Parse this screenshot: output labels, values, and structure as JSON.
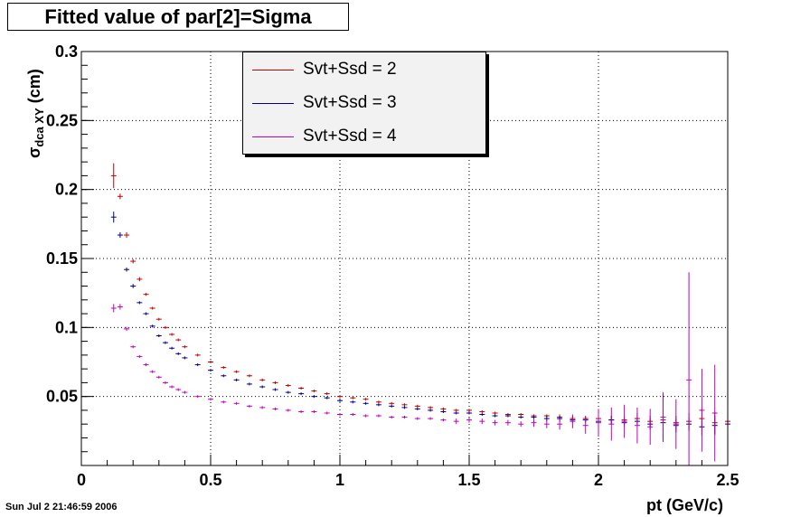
{
  "title": "Fitted value of par[2]=Sigma",
  "timestamp": "Sun Jul  2 21:46:59 2006",
  "chart_data": {
    "type": "scatter",
    "title": "Fitted value of par[2]=Sigma",
    "xlabel": "pt (GeV/c)",
    "ylabel_main": "σ",
    "ylabel_sub": "dca XY",
    "ylabel_unit": " (cm)",
    "xlim": [
      0,
      2.5
    ],
    "ylim": [
      0,
      0.3
    ],
    "x_ticks": [
      "0",
      "0.5",
      "1",
      "1.5",
      "2",
      "2.5"
    ],
    "y_ticks": [
      "0.05",
      "0.1",
      "0.15",
      "0.2",
      "0.25",
      "0.3"
    ],
    "grid": true,
    "legend_position": "top-center",
    "series": [
      {
        "name": "Svt+Ssd = 2",
        "color": "#c00000",
        "points": [
          [
            0.125,
            0.21,
            0.009
          ],
          [
            0.15,
            0.195,
            0.002
          ],
          [
            0.175,
            0.167,
            0.002
          ],
          [
            0.2,
            0.148,
            0.0015
          ],
          [
            0.225,
            0.135,
            0.0015
          ],
          [
            0.25,
            0.124,
            0.001
          ],
          [
            0.275,
            0.114,
            0.001
          ],
          [
            0.3,
            0.106,
            0.001
          ],
          [
            0.325,
            0.1,
            0.001
          ],
          [
            0.35,
            0.095,
            0.001
          ],
          [
            0.375,
            0.091,
            0.001
          ],
          [
            0.4,
            0.086,
            0.001
          ],
          [
            0.45,
            0.08,
            0.001
          ],
          [
            0.5,
            0.075,
            0.001
          ],
          [
            0.55,
            0.071,
            0.001
          ],
          [
            0.6,
            0.068,
            0.001
          ],
          [
            0.65,
            0.065,
            0.001
          ],
          [
            0.7,
            0.062,
            0.001
          ],
          [
            0.75,
            0.06,
            0.001
          ],
          [
            0.8,
            0.058,
            0.001
          ],
          [
            0.85,
            0.056,
            0.001
          ],
          [
            0.9,
            0.054,
            0.001
          ],
          [
            0.95,
            0.052,
            0.001
          ],
          [
            1.0,
            0.05,
            0.001
          ],
          [
            1.05,
            0.049,
            0.001
          ],
          [
            1.1,
            0.048,
            0.001
          ],
          [
            1.15,
            0.046,
            0.001
          ],
          [
            1.2,
            0.045,
            0.001
          ],
          [
            1.25,
            0.044,
            0.001
          ],
          [
            1.3,
            0.043,
            0.001
          ],
          [
            1.35,
            0.042,
            0.001
          ],
          [
            1.4,
            0.041,
            0.001
          ],
          [
            1.45,
            0.04,
            0.001
          ],
          [
            1.5,
            0.04,
            0.001
          ],
          [
            1.55,
            0.039,
            0.001
          ],
          [
            1.6,
            0.038,
            0.001
          ],
          [
            1.65,
            0.037,
            0.001
          ],
          [
            1.7,
            0.037,
            0.001
          ],
          [
            1.75,
            0.036,
            0.001
          ],
          [
            1.8,
            0.036,
            0.001
          ],
          [
            1.85,
            0.035,
            0.002
          ],
          [
            1.9,
            0.034,
            0.002
          ],
          [
            1.95,
            0.034,
            0.002
          ],
          [
            2.0,
            0.034,
            0.002
          ],
          [
            2.05,
            0.033,
            0.003
          ],
          [
            2.1,
            0.033,
            0.003
          ],
          [
            2.15,
            0.034,
            0.004
          ],
          [
            2.2,
            0.032,
            0.004
          ],
          [
            2.25,
            0.033,
            0.005
          ],
          [
            2.3,
            0.031,
            0.005
          ],
          [
            2.35,
            0.032,
            0.006
          ],
          [
            2.4,
            0.034,
            0.007
          ],
          [
            2.45,
            0.031,
            0.008
          ],
          [
            2.5,
            0.032,
            0.009
          ]
        ]
      },
      {
        "name": "Svt+Ssd = 3",
        "color": "#00008b",
        "points": [
          [
            0.125,
            0.18,
            0.004
          ],
          [
            0.15,
            0.167,
            0.002
          ],
          [
            0.175,
            0.142,
            0.0015
          ],
          [
            0.2,
            0.13,
            0.0015
          ],
          [
            0.225,
            0.118,
            0.001
          ],
          [
            0.25,
            0.11,
            0.001
          ],
          [
            0.275,
            0.101,
            0.001
          ],
          [
            0.3,
            0.094,
            0.001
          ],
          [
            0.325,
            0.089,
            0.001
          ],
          [
            0.35,
            0.085,
            0.001
          ],
          [
            0.375,
            0.081,
            0.001
          ],
          [
            0.4,
            0.078,
            0.001
          ],
          [
            0.45,
            0.073,
            0.001
          ],
          [
            0.5,
            0.069,
            0.001
          ],
          [
            0.55,
            0.065,
            0.001
          ],
          [
            0.6,
            0.062,
            0.001
          ],
          [
            0.65,
            0.059,
            0.001
          ],
          [
            0.7,
            0.057,
            0.001
          ],
          [
            0.75,
            0.055,
            0.001
          ],
          [
            0.8,
            0.053,
            0.001
          ],
          [
            0.85,
            0.052,
            0.001
          ],
          [
            0.9,
            0.05,
            0.001
          ],
          [
            0.95,
            0.049,
            0.001
          ],
          [
            1.0,
            0.047,
            0.001
          ],
          [
            1.05,
            0.046,
            0.001
          ],
          [
            1.1,
            0.045,
            0.001
          ],
          [
            1.15,
            0.044,
            0.001
          ],
          [
            1.2,
            0.043,
            0.001
          ],
          [
            1.25,
            0.042,
            0.001
          ],
          [
            1.3,
            0.041,
            0.001
          ],
          [
            1.35,
            0.04,
            0.001
          ],
          [
            1.4,
            0.039,
            0.001
          ],
          [
            1.45,
            0.038,
            0.001
          ],
          [
            1.5,
            0.038,
            0.001
          ],
          [
            1.55,
            0.037,
            0.001
          ],
          [
            1.6,
            0.036,
            0.001
          ],
          [
            1.65,
            0.036,
            0.001
          ],
          [
            1.7,
            0.035,
            0.001
          ],
          [
            1.75,
            0.035,
            0.001
          ],
          [
            1.8,
            0.034,
            0.002
          ],
          [
            1.85,
            0.034,
            0.002
          ],
          [
            1.9,
            0.033,
            0.002
          ],
          [
            1.95,
            0.033,
            0.002
          ],
          [
            2.0,
            0.032,
            0.002
          ],
          [
            2.05,
            0.033,
            0.003
          ],
          [
            2.1,
            0.031,
            0.003
          ],
          [
            2.15,
            0.032,
            0.003
          ],
          [
            2.2,
            0.03,
            0.004
          ],
          [
            2.25,
            0.031,
            0.004
          ],
          [
            2.3,
            0.029,
            0.005
          ],
          [
            2.35,
            0.03,
            0.005
          ],
          [
            2.4,
            0.028,
            0.006
          ],
          [
            2.45,
            0.029,
            0.007
          ],
          [
            2.5,
            0.03,
            0.008
          ]
        ]
      },
      {
        "name": "Svt+Ssd = 4",
        "color": "#c000c0",
        "points": [
          [
            0.125,
            0.114,
            0.003
          ],
          [
            0.15,
            0.115,
            0.002
          ],
          [
            0.175,
            0.099,
            0.0015
          ],
          [
            0.2,
            0.086,
            0.001
          ],
          [
            0.225,
            0.079,
            0.001
          ],
          [
            0.25,
            0.073,
            0.001
          ],
          [
            0.275,
            0.068,
            0.001
          ],
          [
            0.3,
            0.064,
            0.001
          ],
          [
            0.325,
            0.06,
            0.001
          ],
          [
            0.35,
            0.057,
            0.001
          ],
          [
            0.375,
            0.055,
            0.001
          ],
          [
            0.4,
            0.053,
            0.001
          ],
          [
            0.45,
            0.05,
            0.001
          ],
          [
            0.5,
            0.048,
            0.001
          ],
          [
            0.55,
            0.046,
            0.001
          ],
          [
            0.6,
            0.045,
            0.001
          ],
          [
            0.65,
            0.043,
            0.001
          ],
          [
            0.7,
            0.042,
            0.001
          ],
          [
            0.75,
            0.041,
            0.001
          ],
          [
            0.8,
            0.04,
            0.001
          ],
          [
            0.85,
            0.039,
            0.001
          ],
          [
            0.9,
            0.039,
            0.001
          ],
          [
            0.95,
            0.038,
            0.001
          ],
          [
            1.0,
            0.037,
            0.001
          ],
          [
            1.05,
            0.037,
            0.001
          ],
          [
            1.1,
            0.036,
            0.001
          ],
          [
            1.15,
            0.036,
            0.001
          ],
          [
            1.2,
            0.035,
            0.001
          ],
          [
            1.25,
            0.035,
            0.001
          ],
          [
            1.3,
            0.034,
            0.001
          ],
          [
            1.35,
            0.034,
            0.001
          ],
          [
            1.4,
            0.033,
            0.001
          ],
          [
            1.45,
            0.032,
            0.002
          ],
          [
            1.5,
            0.033,
            0.002
          ],
          [
            1.55,
            0.032,
            0.002
          ],
          [
            1.6,
            0.031,
            0.002
          ],
          [
            1.65,
            0.031,
            0.002
          ],
          [
            1.7,
            0.03,
            0.002
          ],
          [
            1.75,
            0.031,
            0.003
          ],
          [
            1.8,
            0.03,
            0.003
          ],
          [
            1.85,
            0.03,
            0.004
          ],
          [
            1.9,
            0.032,
            0.005
          ],
          [
            1.95,
            0.029,
            0.006
          ],
          [
            2.0,
            0.031,
            0.01
          ],
          [
            2.05,
            0.03,
            0.012
          ],
          [
            2.1,
            0.032,
            0.012
          ],
          [
            2.15,
            0.029,
            0.013
          ],
          [
            2.2,
            0.028,
            0.013
          ],
          [
            2.25,
            0.035,
            0.018
          ],
          [
            2.3,
            0.03,
            0.018
          ],
          [
            2.35,
            0.062,
            0.078
          ],
          [
            2.4,
            0.04,
            0.03
          ],
          [
            2.45,
            0.038,
            0.035
          ],
          [
            2.5,
            0.03,
            0.03
          ]
        ]
      }
    ]
  }
}
